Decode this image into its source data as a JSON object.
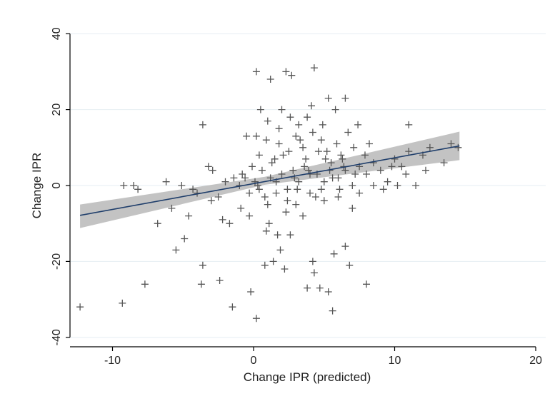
{
  "chart_data": {
    "type": "scatter",
    "title": "",
    "xlabel": "Change IPR (predicted)",
    "ylabel": "Change IPR",
    "xlim": [
      -12.5,
      20.5
    ],
    "ylim": [
      -42,
      42
    ],
    "xticks": [
      -10,
      0,
      10,
      20
    ],
    "yticks": [
      -40,
      -20,
      0,
      20,
      40
    ],
    "grid": "horizontal",
    "marker": "plus",
    "colors": {
      "points": "#555555",
      "line": "#1f3e6b",
      "band": "#bdbdbd",
      "grid": "#e6eef3",
      "axis": "#000000"
    },
    "fit": {
      "slope": 0.68,
      "intercept": 0.5,
      "x_range": [
        -12.3,
        14.6
      ]
    },
    "confidence_band": {
      "x": [
        -12.3,
        0.8,
        14.6
      ],
      "lower": [
        -11.2,
        0.2,
        6.7
      ],
      "upper": [
        -5.0,
        2.3,
        14.2
      ]
    },
    "points": [
      [
        -12.3,
        -32
      ],
      [
        -9.3,
        -31
      ],
      [
        -7.7,
        -26
      ],
      [
        -3.7,
        -26
      ],
      [
        -3.6,
        -21
      ],
      [
        -2.4,
        -25
      ],
      [
        -1.5,
        -32
      ],
      [
        -0.2,
        -28
      ],
      [
        0.2,
        -35
      ],
      [
        -3.6,
        16
      ],
      [
        -9.2,
        0
      ],
      [
        -8.5,
        0
      ],
      [
        -8.2,
        -1
      ],
      [
        -6.8,
        -10
      ],
      [
        -5.5,
        -17
      ],
      [
        -4.9,
        -14
      ],
      [
        -5.8,
        -6
      ],
      [
        -4.6,
        -8
      ],
      [
        -6.2,
        1
      ],
      [
        -5.1,
        0
      ],
      [
        -4.3,
        -1
      ],
      [
        -3.2,
        5
      ],
      [
        -2.9,
        4
      ],
      [
        -2.2,
        -9
      ],
      [
        -1.7,
        -10
      ],
      [
        -1.4,
        2
      ],
      [
        -0.8,
        3
      ],
      [
        -0.3,
        -2
      ],
      [
        -0.9,
        -6
      ],
      [
        -4.0,
        -2
      ],
      [
        -2.5,
        -3
      ],
      [
        0.1,
        1
      ],
      [
        0.4,
        -1
      ],
      [
        0.8,
        -3
      ],
      [
        1.2,
        2
      ],
      [
        1.6,
        -2
      ],
      [
        2.0,
        3
      ],
      [
        2.4,
        -1
      ],
      [
        2.8,
        4
      ],
      [
        3.2,
        1
      ],
      [
        3.6,
        5
      ],
      [
        4.0,
        -2
      ],
      [
        4.5,
        3
      ],
      [
        5.0,
        1
      ],
      [
        5.5,
        6
      ],
      [
        6.0,
        2
      ],
      [
        6.5,
        4
      ],
      [
        7.0,
        0
      ],
      [
        7.5,
        5
      ],
      [
        8.0,
        3
      ],
      [
        8.5,
        6
      ],
      [
        9.0,
        4
      ],
      [
        9.5,
        1
      ],
      [
        10.0,
        7
      ],
      [
        10.5,
        5
      ],
      [
        11.0,
        9
      ],
      [
        11.5,
        0
      ],
      [
        12.0,
        8
      ],
      [
        12.5,
        10
      ],
      [
        13.5,
        6
      ],
      [
        14.0,
        11
      ],
      [
        14.5,
        10
      ],
      [
        11.0,
        16
      ],
      [
        0.2,
        30
      ],
      [
        1.2,
        28
      ],
      [
        2.3,
        30
      ],
      [
        2.7,
        29
      ],
      [
        4.3,
        31
      ],
      [
        5.3,
        23
      ],
      [
        6.5,
        23
      ],
      [
        3.8,
        18
      ],
      [
        3.2,
        16
      ],
      [
        2.0,
        20
      ],
      [
        1.0,
        17
      ],
      [
        0.5,
        20
      ],
      [
        -0.5,
        13
      ],
      [
        0.9,
        12
      ],
      [
        1.8,
        11
      ],
      [
        2.5,
        9
      ],
      [
        3.0,
        13
      ],
      [
        3.5,
        10
      ],
      [
        4.2,
        14
      ],
      [
        4.8,
        12
      ],
      [
        5.2,
        9
      ],
      [
        5.9,
        11
      ],
      [
        6.2,
        8
      ],
      [
        7.1,
        10
      ],
      [
        1.5,
        7
      ],
      [
        0.4,
        8
      ],
      [
        -0.1,
        5
      ],
      [
        1.1,
        -10
      ],
      [
        1.7,
        -13
      ],
      [
        2.6,
        -13
      ],
      [
        1.9,
        -17
      ],
      [
        1.4,
        -20
      ],
      [
        2.2,
        -22
      ],
      [
        0.8,
        -21
      ],
      [
        4.2,
        -20
      ],
      [
        4.3,
        -23
      ],
      [
        3.8,
        -27
      ],
      [
        4.7,
        -27
      ],
      [
        5.3,
        -28
      ],
      [
        5.6,
        -33
      ],
      [
        5.7,
        -18
      ],
      [
        6.5,
        -16
      ],
      [
        6.8,
        -21
      ],
      [
        7.0,
        -6
      ],
      [
        8.0,
        -26
      ],
      [
        3.0,
        -5
      ],
      [
        3.5,
        -8
      ],
      [
        5.0,
        -4
      ],
      [
        6.0,
        -3
      ],
      [
        7.5,
        -2
      ],
      [
        8.5,
        0
      ],
      [
        9.2,
        -1
      ],
      [
        10.2,
        0
      ],
      [
        0.6,
        4
      ],
      [
        1.3,
        6
      ],
      [
        2.1,
        8
      ],
      [
        2.9,
        2
      ],
      [
        3.7,
        7
      ],
      [
        4.6,
        9
      ],
      [
        5.4,
        4
      ],
      [
        6.3,
        7
      ],
      [
        -1.0,
        0
      ],
      [
        -2.0,
        1
      ],
      [
        -3.0,
        -4
      ],
      [
        -0.6,
        2
      ],
      [
        0.3,
        0
      ],
      [
        1.0,
        -5
      ],
      [
        2.3,
        -7
      ],
      [
        3.3,
        12
      ],
      [
        4.1,
        21
      ],
      [
        4.9,
        16
      ],
      [
        5.8,
        20
      ],
      [
        6.7,
        14
      ],
      [
        7.4,
        16
      ],
      [
        8.2,
        11
      ],
      [
        0.2,
        13
      ],
      [
        1.8,
        15
      ],
      [
        2.6,
        18
      ],
      [
        3.9,
        4
      ],
      [
        4.4,
        -3
      ],
      [
        5.1,
        7
      ],
      [
        6.1,
        -1
      ],
      [
        7.9,
        8
      ],
      [
        9.8,
        5
      ],
      [
        10.8,
        3
      ],
      [
        12.2,
        4
      ],
      [
        -0.3,
        -8
      ],
      [
        0.9,
        -12
      ],
      [
        1.6,
        1
      ],
      [
        2.4,
        -4
      ],
      [
        3.1,
        -1
      ],
      [
        4.0,
        3
      ],
      [
        4.8,
        -1
      ],
      [
        5.6,
        2
      ],
      [
        6.4,
        5
      ],
      [
        7.2,
        3
      ]
    ]
  }
}
